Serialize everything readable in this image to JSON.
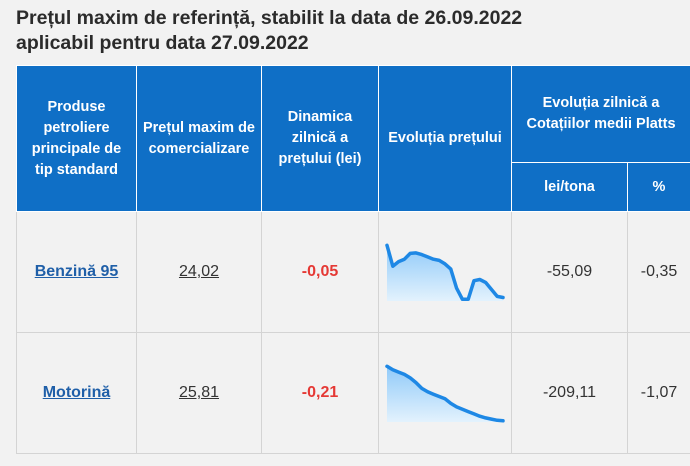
{
  "title": {
    "line1": "Prețul maxim de referință, stabilit la data de 26.09.2022",
    "line2": "aplicabil pentru data 27.09.2022"
  },
  "headers": {
    "products": "Produse petroliere principale de tip standard",
    "max_price": "Prețul maxim de comercializare",
    "dynamics": "Dinamica zilnică a prețului (lei)",
    "evolution": "Evoluția prețului",
    "platts": "Evoluția zilnică a Cotațiilor medii Platts",
    "lei_tona": "lei/tona",
    "percent": "%"
  },
  "rows": [
    {
      "product": "Benzină 95",
      "price": "24,02",
      "dynamic": "-0,05",
      "platts_lei": "-55,09",
      "platts_pct": "-0,35",
      "spark": [
        0.96,
        0.6,
        0.68,
        0.72,
        0.82,
        0.83,
        0.8,
        0.76,
        0.72,
        0.7,
        0.64,
        0.55,
        0.22,
        0.03,
        0.03,
        0.35,
        0.37,
        0.32,
        0.2,
        0.08,
        0.06
      ]
    },
    {
      "product": "Motorină",
      "price": "25,81",
      "dynamic": "-0,21",
      "platts_lei": "-209,11",
      "platts_pct": "-1,07",
      "spark": [
        0.96,
        0.9,
        0.86,
        0.82,
        0.76,
        0.68,
        0.58,
        0.52,
        0.48,
        0.44,
        0.4,
        0.32,
        0.26,
        0.22,
        0.18,
        0.14,
        0.1,
        0.07,
        0.05,
        0.03,
        0.02
      ]
    }
  ],
  "colors": {
    "header_bg": "#0f6fc6",
    "negative": "#e53935",
    "link": "#1f5fa8",
    "spark_line": "#1e88e5",
    "spark_fill_top": "#90caf9",
    "spark_fill_bottom": "#e3f2fd"
  }
}
